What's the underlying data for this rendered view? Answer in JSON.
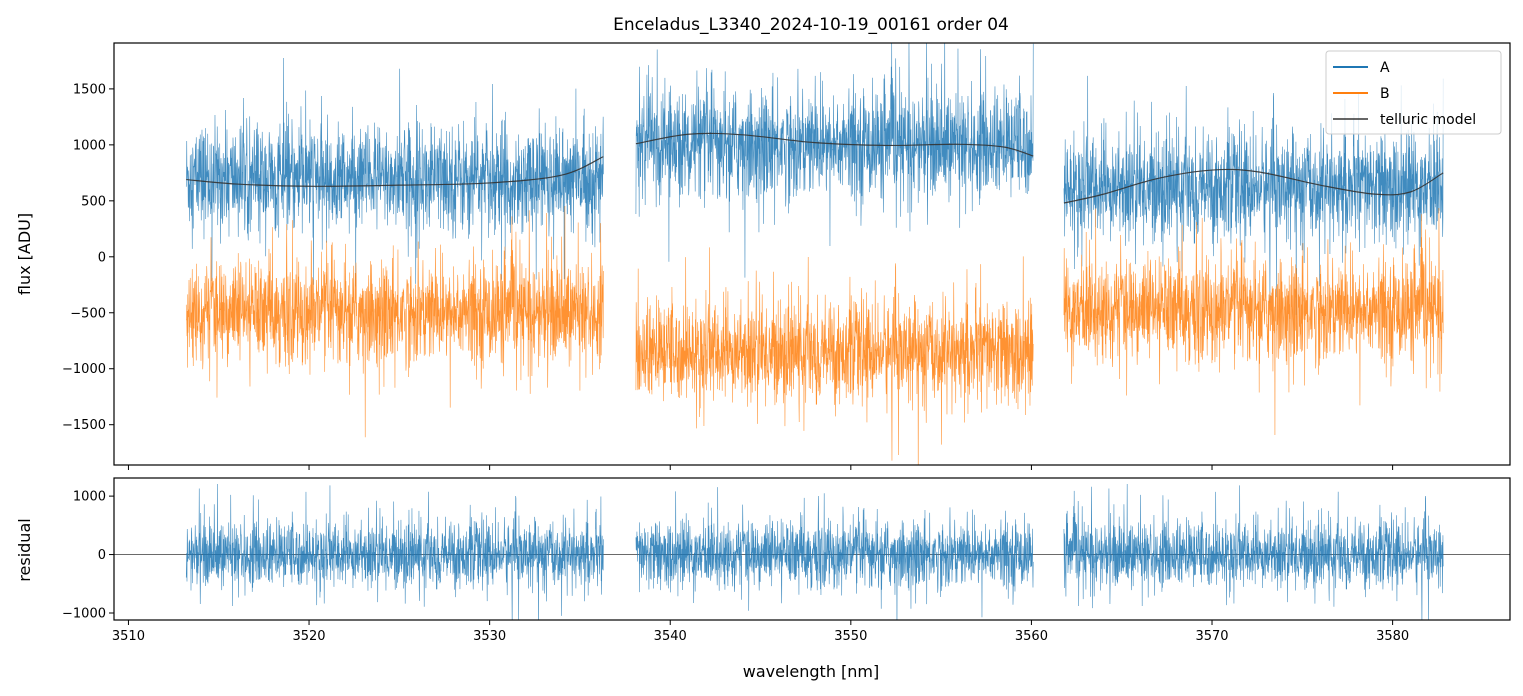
{
  "chart_data": [
    {
      "type": "line",
      "title": "Enceladus_L3340_2024-10-19_00161  order 04",
      "ylabel": "flux [ADU]",
      "xlim": [
        3509.2,
        3586.5
      ],
      "ylim": [
        -1860,
        1910
      ],
      "yticks": [
        -1500,
        -1000,
        -500,
        0,
        500,
        1000,
        1500
      ],
      "yticklabels": [
        "−1500",
        "−1000",
        "−500",
        "0",
        "500",
        "1000",
        "1500"
      ],
      "xticks": [
        3510,
        3520,
        3530,
        3540,
        3550,
        3560,
        3570,
        3580
      ],
      "segments": [
        [
          3513.2,
          3536.3
        ],
        [
          3538.1,
          3560.1
        ],
        [
          3561.8,
          3582.8
        ]
      ],
      "legend": {
        "position": "top-right",
        "entries": [
          "A",
          "B",
          "telluric model"
        ]
      },
      "series": [
        {
          "name": "A",
          "color": "#1f77b4",
          "mean": [
            [
              3513.2,
              3536.3,
              700
            ],
            [
              3538.1,
              3560.1,
              1000
            ],
            [
              3561.8,
              3582.8,
              620
            ]
          ],
          "noise": 320
        },
        {
          "name": "B",
          "color": "#ff7f0e",
          "mean": [
            [
              3513.2,
              3536.3,
              -500
            ],
            [
              3538.1,
              3560.1,
              -850
            ],
            [
              3561.8,
              3582.8,
              -480
            ]
          ],
          "noise": 300
        },
        {
          "name": "telluric model",
          "color": "#333333",
          "points": [
            [
              [
                3513.2,
                690
              ],
              [
                3516,
                650
              ],
              [
                3520,
                630
              ],
              [
                3525,
                640
              ],
              [
                3530,
                660
              ],
              [
                3534,
                730
              ],
              [
                3536.3,
                895
              ]
            ],
            [
              [
                3538.1,
                1010
              ],
              [
                3541,
                1095
              ],
              [
                3544,
                1090
              ],
              [
                3548,
                1020
              ],
              [
                3552,
                995
              ],
              [
                3556,
                1005
              ],
              [
                3558.5,
                980
              ],
              [
                3560.1,
                900
              ]
            ],
            [
              [
                3561.8,
                480
              ],
              [
                3564,
                560
              ],
              [
                3567,
                700
              ],
              [
                3570,
                775
              ],
              [
                3572.5,
                760
              ],
              [
                3576,
                640
              ],
              [
                3579,
                560
              ],
              [
                3581,
                580
              ],
              [
                3582.8,
                750
              ]
            ]
          ]
        }
      ]
    },
    {
      "type": "line",
      "xlabel": "wavelength [nm]",
      "ylabel": "residual",
      "xlim": [
        3509.2,
        3586.5
      ],
      "ylim": [
        -1120,
        1310
      ],
      "yticks": [
        -1000,
        0,
        1000
      ],
      "yticklabels": [
        "−1000",
        "0",
        "1000"
      ],
      "xticks": [
        3510,
        3520,
        3530,
        3540,
        3550,
        3560,
        3570,
        3580
      ],
      "xticklabels": [
        "3510",
        "3520",
        "3530",
        "3540",
        "3550",
        "3560",
        "3570",
        "3580"
      ],
      "segments": [
        [
          3513.2,
          3536.3
        ],
        [
          3538.1,
          3560.1
        ],
        [
          3561.8,
          3582.8
        ]
      ],
      "zero_line": true,
      "series": [
        {
          "name": "residual",
          "color": "#1f77b4",
          "noise": 380
        }
      ]
    }
  ]
}
